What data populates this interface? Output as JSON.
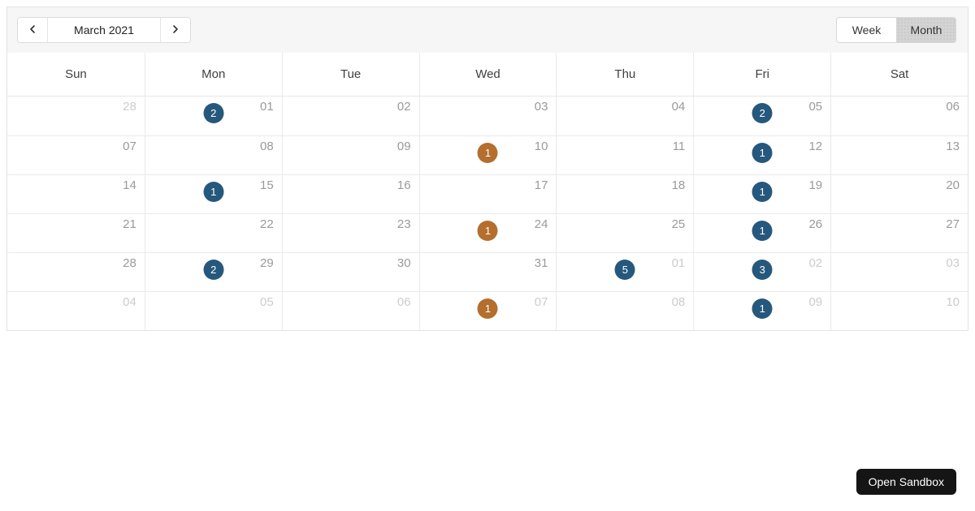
{
  "toolbar": {
    "title": "March 2021",
    "week_label": "Week",
    "month_label": "Month",
    "selected_view": "month"
  },
  "colors": {
    "badge_blue": "#26587d",
    "badge_orange": "#b46e2d",
    "toolbar_bg": "#f6f6f6",
    "selected_toggle_bg": "#d4d4d4",
    "sandbox_button_bg": "#151515"
  },
  "calendar": {
    "day_headers": [
      "Sun",
      "Mon",
      "Tue",
      "Wed",
      "Thu",
      "Fri",
      "Sat"
    ],
    "weeks": [
      [
        {
          "date": "28",
          "outside": true
        },
        {
          "date": "01",
          "outside": false,
          "badge": {
            "count": "2",
            "type": "blue"
          }
        },
        {
          "date": "02",
          "outside": false
        },
        {
          "date": "03",
          "outside": false
        },
        {
          "date": "04",
          "outside": false
        },
        {
          "date": "05",
          "outside": false,
          "badge": {
            "count": "2",
            "type": "blue"
          }
        },
        {
          "date": "06",
          "outside": false
        }
      ],
      [
        {
          "date": "07",
          "outside": false
        },
        {
          "date": "08",
          "outside": false
        },
        {
          "date": "09",
          "outside": false
        },
        {
          "date": "10",
          "outside": false,
          "badge": {
            "count": "1",
            "type": "orange"
          }
        },
        {
          "date": "11",
          "outside": false
        },
        {
          "date": "12",
          "outside": false,
          "badge": {
            "count": "1",
            "type": "blue"
          }
        },
        {
          "date": "13",
          "outside": false
        }
      ],
      [
        {
          "date": "14",
          "outside": false
        },
        {
          "date": "15",
          "outside": false,
          "badge": {
            "count": "1",
            "type": "blue"
          }
        },
        {
          "date": "16",
          "outside": false
        },
        {
          "date": "17",
          "outside": false
        },
        {
          "date": "18",
          "outside": false
        },
        {
          "date": "19",
          "outside": false,
          "badge": {
            "count": "1",
            "type": "blue"
          }
        },
        {
          "date": "20",
          "outside": false
        }
      ],
      [
        {
          "date": "21",
          "outside": false
        },
        {
          "date": "22",
          "outside": false
        },
        {
          "date": "23",
          "outside": false
        },
        {
          "date": "24",
          "outside": false,
          "badge": {
            "count": "1",
            "type": "orange"
          }
        },
        {
          "date": "25",
          "outside": false
        },
        {
          "date": "26",
          "outside": false,
          "badge": {
            "count": "1",
            "type": "blue"
          }
        },
        {
          "date": "27",
          "outside": false
        }
      ],
      [
        {
          "date": "28",
          "outside": false
        },
        {
          "date": "29",
          "outside": false,
          "badge": {
            "count": "2",
            "type": "blue"
          }
        },
        {
          "date": "30",
          "outside": false
        },
        {
          "date": "31",
          "outside": false
        },
        {
          "date": "01",
          "outside": true,
          "badge": {
            "count": "5",
            "type": "blue"
          }
        },
        {
          "date": "02",
          "outside": true,
          "badge": {
            "count": "3",
            "type": "blue"
          }
        },
        {
          "date": "03",
          "outside": true
        }
      ],
      [
        {
          "date": "04",
          "outside": true
        },
        {
          "date": "05",
          "outside": true
        },
        {
          "date": "06",
          "outside": true
        },
        {
          "date": "07",
          "outside": true,
          "badge": {
            "count": "1",
            "type": "orange"
          }
        },
        {
          "date": "08",
          "outside": true
        },
        {
          "date": "09",
          "outside": true,
          "badge": {
            "count": "1",
            "type": "blue"
          }
        },
        {
          "date": "10",
          "outside": true
        }
      ]
    ]
  },
  "sandbox": {
    "label": "Open Sandbox"
  }
}
